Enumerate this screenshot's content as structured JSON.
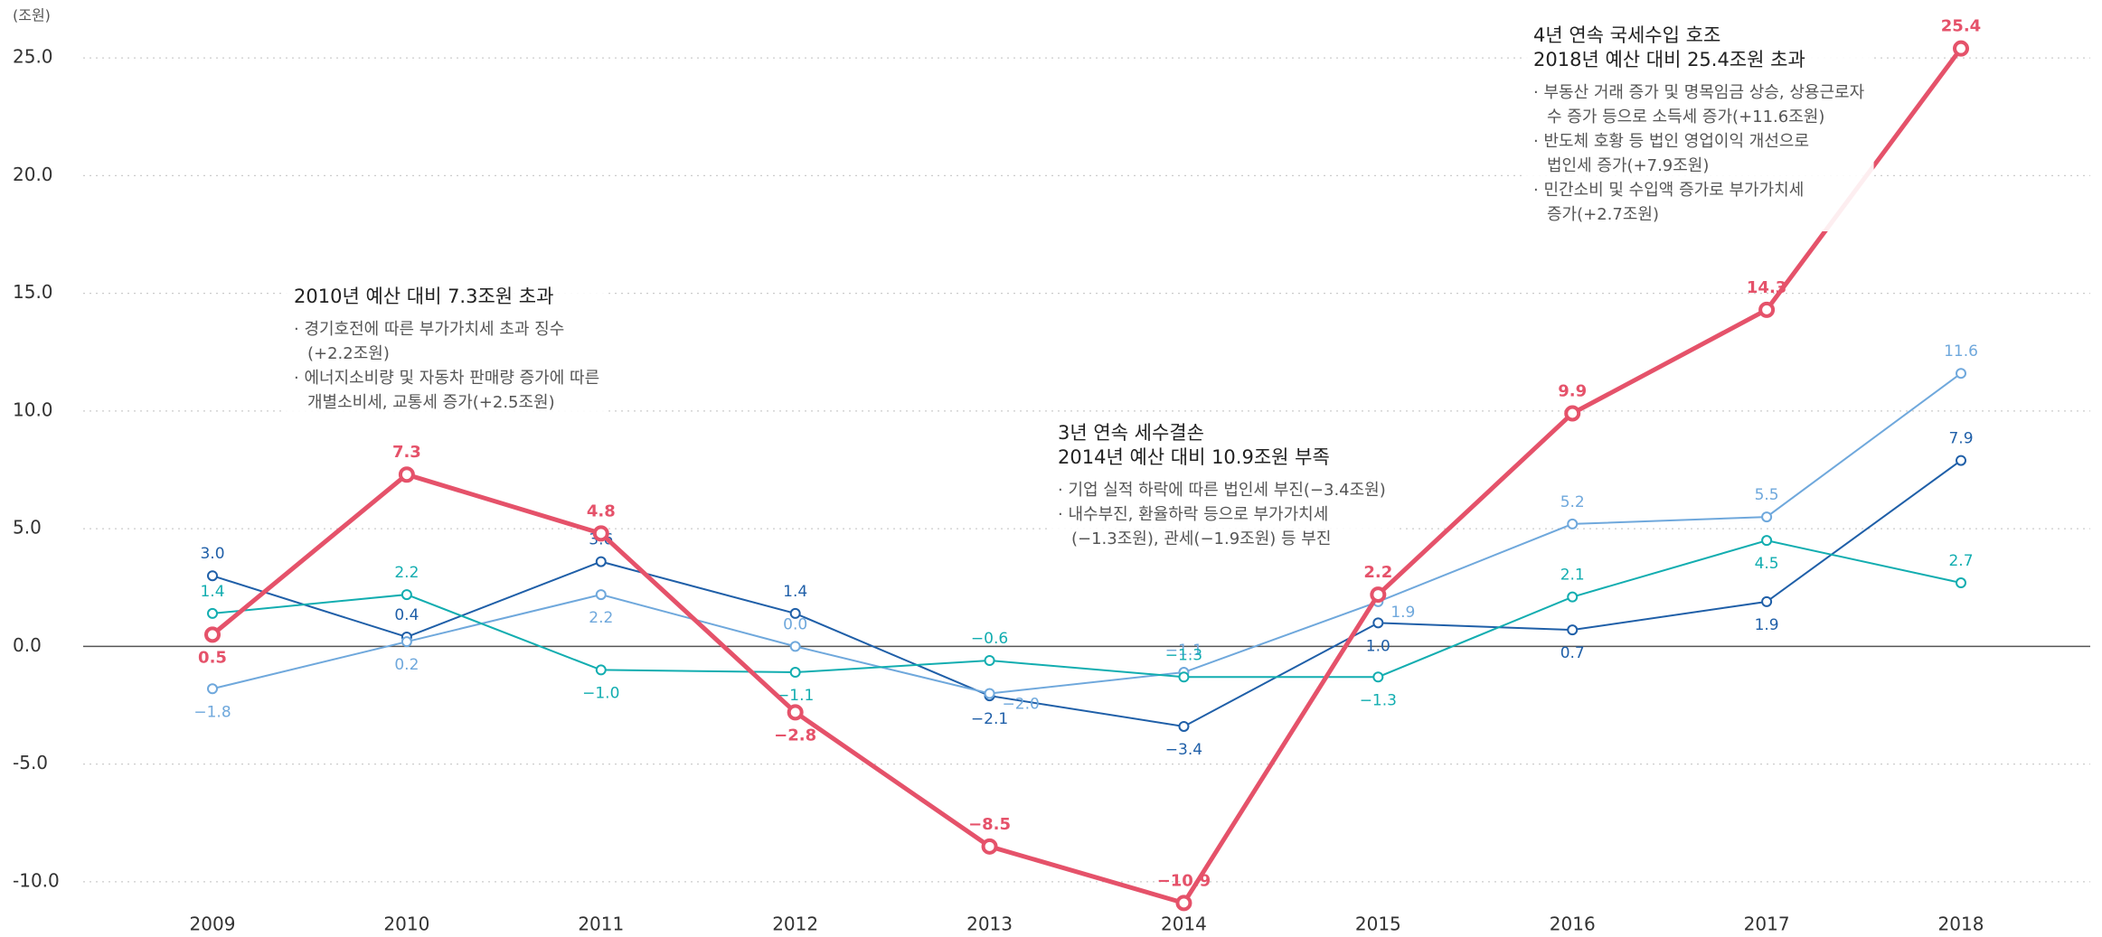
{
  "chart_data": {
    "type": "line",
    "unit_label": "(조원)",
    "categories": [
      "2009",
      "2010",
      "2011",
      "2012",
      "2013",
      "2014",
      "2015",
      "2016",
      "2017",
      "2018"
    ],
    "ylim": [
      -12,
      27
    ],
    "yticks": [
      {
        "value": -10,
        "label": "-10.0"
      },
      {
        "value": -5,
        "label": "-5.0"
      },
      {
        "value": 0,
        "label": "0.0"
      },
      {
        "value": 5,
        "label": "5.0"
      },
      {
        "value": 10,
        "label": "10.0"
      },
      {
        "value": 15,
        "label": "15.0"
      },
      {
        "value": 20,
        "label": "20.0"
      },
      {
        "value": 25,
        "label": "25.0"
      }
    ],
    "grid": true,
    "series": [
      {
        "color": "#1f5fa8",
        "values": [
          3.0,
          0.4,
          3.6,
          1.4,
          -2.1,
          -3.4,
          1.0,
          0.7,
          1.9,
          7.9
        ],
        "value_labels": [
          "3.0",
          "0.4",
          "3.6",
          "1.4",
          "−2.1",
          "−3.4",
          "1.0",
          "0.7",
          "1.9",
          "7.9"
        ]
      },
      {
        "color": "#6fa8dc",
        "values": [
          -1.8,
          0.2,
          2.2,
          0.0,
          -2.0,
          -1.1,
          1.9,
          5.2,
          5.5,
          11.6
        ],
        "value_labels": [
          "−1.8",
          "0.2",
          "2.2",
          "0.0",
          "−2.0",
          "−1.1",
          "1.9",
          "5.2",
          "5.5",
          "11.6"
        ]
      },
      {
        "color": "#12adb0",
        "values": [
          1.4,
          2.2,
          -1.0,
          -1.1,
          -0.6,
          -1.3,
          -1.3,
          2.1,
          4.5,
          2.7
        ],
        "value_labels": [
          "1.4",
          "2.2",
          "−1.0",
          "−1.1",
          "−0.6",
          "−1.3",
          "−1.3",
          "2.1",
          "4.5",
          "2.7"
        ]
      },
      {
        "color": "#e5526a",
        "values": [
          0.5,
          7.3,
          4.8,
          -2.8,
          -8.5,
          -10.9,
          2.2,
          9.9,
          14.3,
          25.4
        ],
        "value_labels": [
          "0.5",
          "7.3",
          "4.8",
          "−2.8",
          "−8.5",
          "−10.9",
          "2.2",
          "9.9",
          "14.3",
          "25.4"
        ]
      }
    ],
    "annotations": [
      {
        "title": [
          "2010년 예산 대비 7.3조원 초과"
        ],
        "bullets": [
          "· 경기호전에 따른 부가가치세 초과 징수",
          "(+2.2조원)",
          "· 에너지소비량 및 자동차 판매량 증가에 따른",
          "개별소비세, 교통세 증가(+2.5조원)"
        ]
      },
      {
        "title": [
          "3년 연속 세수결손",
          "2014년 예산 대비 10.9조원 부족"
        ],
        "bullets": [
          "· 기업 실적 하락에 따른 법인세 부진(−3.4조원)",
          "· 내수부진, 환율하락 등으로 부가가치세",
          "(−1.3조원), 관세(−1.9조원) 등 부진"
        ]
      },
      {
        "title": [
          "4년 연속 국세수입 호조",
          "2018년 예산 대비 25.4조원 초과"
        ],
        "bullets": [
          "· 부동산 거래 증가 및 명목임금 상승, 상용근로자",
          "수 증가 등으로 소득세 증가(+11.6조원)",
          "· 반도체 호황 등 법인 영업이익 개선으로",
          "법인세 증가(+7.9조원)",
          "· 민간소비 및 수입액 증가로 부가가치세",
          "증가(+2.7조원)"
        ]
      }
    ]
  }
}
